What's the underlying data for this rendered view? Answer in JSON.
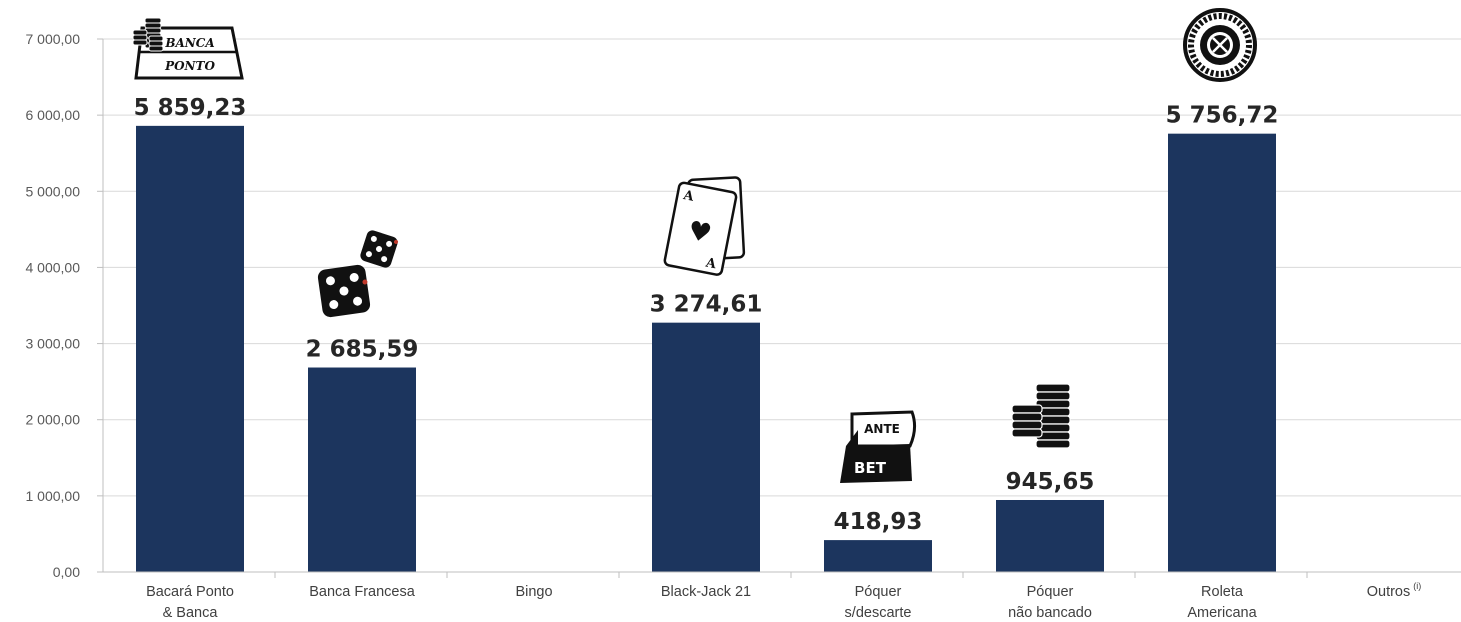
{
  "chart_data": {
    "type": "bar",
    "categories": [
      [
        "Bacará Ponto",
        "& Banca"
      ],
      [
        "Banca Francesa"
      ],
      [
        "Bingo"
      ],
      [
        "Black-Jack 21"
      ],
      [
        "Póquer",
        "s/descarte"
      ],
      [
        "Póquer",
        "não bancado"
      ],
      [
        "Roleta",
        "Americana"
      ],
      [
        "Outros"
      ]
    ],
    "category_superscripts": [
      "",
      "",
      "",
      "",
      "",
      "",
      "",
      "(i)"
    ],
    "values": [
      5859.23,
      2685.59,
      null,
      3274.61,
      418.93,
      945.65,
      5756.72,
      null
    ],
    "data_labels": [
      "5 859,23",
      "2 685,59",
      "",
      "3 274,61",
      "418,93",
      "945,65",
      "5 756,72",
      ""
    ],
    "yticks": [
      "0,00",
      "1 000,00",
      "2 000,00",
      "3 000,00",
      "4 000,00",
      "5 000,00",
      "6 000,00",
      "7 000,00"
    ],
    "ylim": [
      0,
      7000
    ],
    "bar_color": "#1c355e",
    "grid": true,
    "icons": [
      "baccarat-table-icon",
      "dice-icon",
      "",
      "playing-cards-icon",
      "ante-bet-box-icon",
      "poker-chips-icon",
      "roulette-wheel-icon",
      ""
    ],
    "icon_texts": {
      "baccarat_banca": "BANCA",
      "baccarat_ponto": "PONTO",
      "ante": "ANTE",
      "bet": "BET"
    }
  }
}
